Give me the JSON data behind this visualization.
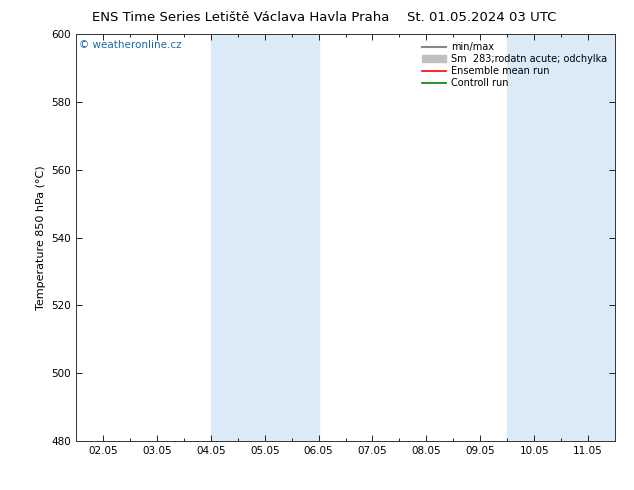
{
  "title_left": "ENS Time Series Letiště Václava Havla Praha",
  "title_right": "St. 01.05.2024 03 UTC",
  "ylabel": "Temperature 850 hPa (°C)",
  "ylim": [
    480,
    600
  ],
  "yticks": [
    480,
    500,
    520,
    540,
    560,
    580,
    600
  ],
  "xtick_labels": [
    "02.05",
    "03.05",
    "04.05",
    "05.05",
    "06.05",
    "07.05",
    "08.05",
    "09.05",
    "10.05",
    "11.05"
  ],
  "shaded_bands": [
    {
      "xstart": 2.0,
      "xend": 4.0
    },
    {
      "xstart": 7.5,
      "xend": 9.5
    }
  ],
  "shade_color": "#daeaf6",
  "watermark": "© weatheronline.cz",
  "watermark_color": "#1a6aad",
  "legend_entries": [
    {
      "label": "min/max",
      "color": "#888888",
      "lw": 1.5,
      "linestyle": "-"
    },
    {
      "label": "Sm  283;rodatn acute; odchylka",
      "color": "#c0c0c0",
      "lw": 6,
      "linestyle": "-"
    },
    {
      "label": "Ensemble mean run",
      "color": "red",
      "lw": 1.2,
      "linestyle": "-"
    },
    {
      "label": "Controll run",
      "color": "green",
      "lw": 1.2,
      "linestyle": "-"
    }
  ],
  "bg_color": "#ffffff",
  "plot_bg_color": "#ffffff",
  "title_fontsize": 9.5,
  "ylabel_fontsize": 8,
  "tick_fontsize": 7.5
}
